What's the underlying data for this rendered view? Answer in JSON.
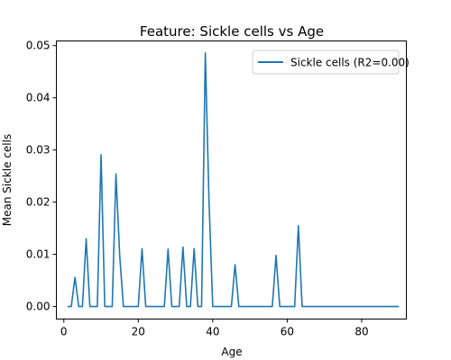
{
  "chart_data": {
    "type": "line",
    "title": "Feature: Sickle cells vs Age",
    "xlabel": "Age",
    "ylabel": "Mean Sickle cells",
    "xlim": [
      -2,
      92
    ],
    "ylim": [
      -0.0024,
      0.0509
    ],
    "x_ticks": [
      0,
      20,
      40,
      60,
      80
    ],
    "y_ticks": [
      0.0,
      0.01,
      0.02,
      0.03,
      0.04,
      0.05
    ],
    "y_tick_labels": [
      "0.00",
      "0.01",
      "0.02",
      "0.03",
      "0.04",
      "0.05"
    ],
    "legend_position": "top-right",
    "grid": false,
    "series": [
      {
        "name": "Sickle cells (R2=0.00)",
        "color": "#1f77b4",
        "x": [
          1,
          2,
          3,
          4,
          5,
          6,
          7,
          8,
          9,
          10,
          11,
          12,
          13,
          14,
          15,
          16,
          17,
          18,
          19,
          20,
          21,
          22,
          23,
          24,
          25,
          26,
          27,
          28,
          29,
          30,
          31,
          32,
          33,
          34,
          35,
          36,
          37,
          38,
          39,
          40,
          41,
          42,
          43,
          44,
          45,
          46,
          47,
          48,
          49,
          50,
          51,
          52,
          53,
          54,
          55,
          56,
          57,
          58,
          59,
          60,
          61,
          62,
          63,
          64,
          90
        ],
        "y": [
          0,
          0,
          0.0056,
          0,
          0,
          0.013,
          0,
          0,
          0,
          0.0291,
          0,
          0,
          0,
          0.0254,
          0.0099,
          0,
          0,
          0,
          0,
          0,
          0.0111,
          0,
          0,
          0,
          0,
          0,
          0,
          0.011,
          0,
          0,
          0,
          0.0114,
          0,
          0,
          0.0111,
          0,
          0,
          0.0486,
          0.0201,
          0,
          0,
          0,
          0,
          0,
          0,
          0.008,
          0,
          0,
          0,
          0,
          0,
          0,
          0,
          0,
          0,
          0,
          0.0098,
          0,
          0,
          0,
          0,
          0,
          0.0155,
          0,
          0
        ]
      }
    ]
  }
}
